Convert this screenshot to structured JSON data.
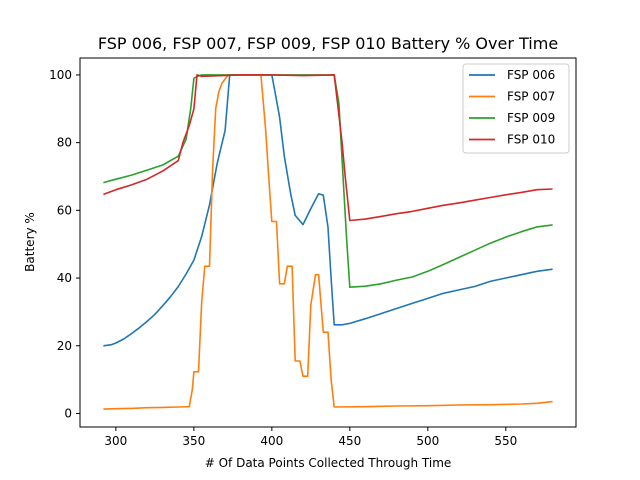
{
  "chart_data": {
    "type": "line",
    "title": "FSP 006, FSP 007, FSP 009, FSP 010 Battery % Over Time",
    "xlabel": "# Of Data Points Collected Through Time",
    "ylabel": "Battery %",
    "xlim": [
      277,
      595
    ],
    "ylim": [
      -4,
      105
    ],
    "xticks": [
      300,
      350,
      400,
      450,
      500,
      550
    ],
    "yticks": [
      0,
      20,
      40,
      60,
      80,
      100
    ],
    "grid": false,
    "legend_position": "top-right",
    "series": [
      {
        "name": "FSP 006",
        "color": "#1f77b4",
        "x": [
          292,
          297,
          300,
          305,
          310,
          315,
          320,
          325,
          330,
          335,
          340,
          345,
          350,
          355,
          360,
          365,
          370,
          373,
          400,
          402,
          405,
          408,
          412,
          415,
          420,
          425,
          430,
          433,
          436,
          438,
          440,
          445,
          450,
          460,
          470,
          480,
          490,
          500,
          510,
          520,
          530,
          540,
          550,
          560,
          570,
          580
        ],
        "y": [
          20,
          20.3,
          20.8,
          22,
          23.6,
          25.3,
          27.2,
          29.3,
          31.8,
          34.5,
          37.5,
          41.2,
          45.3,
          52.3,
          61.6,
          74,
          83.6,
          100,
          100,
          95,
          87.5,
          76,
          65,
          58.5,
          55.8,
          60.5,
          64.9,
          64.5,
          55,
          40,
          26.2,
          26.2,
          26.6,
          28,
          29.5,
          31,
          32.5,
          34,
          35.5,
          36.5,
          37.5,
          39,
          40,
          41,
          42,
          42.6
        ]
      },
      {
        "name": "FSP 007",
        "color": "#ff7f0e",
        "x": [
          292,
          300,
          310,
          320,
          330,
          340,
          347,
          349,
          350,
          353,
          355,
          357,
          360,
          362,
          364,
          366,
          368,
          372,
          393,
          396,
          398,
          400,
          403,
          405,
          408,
          410,
          413,
          415,
          418,
          420,
          423,
          425,
          428,
          430,
          433,
          436,
          438,
          440,
          460,
          480,
          500,
          520,
          540,
          560,
          570,
          580
        ],
        "y": [
          1.3,
          1.4,
          1.5,
          1.7,
          1.8,
          1.9,
          2,
          7,
          12.3,
          12.3,
          33,
          43.5,
          43.5,
          72,
          90,
          95,
          97.5,
          100,
          100,
          84,
          70,
          56.7,
          56.7,
          38.3,
          38.3,
          43.5,
          43.5,
          15.5,
          15.5,
          11,
          11,
          32,
          41,
          41,
          24,
          24,
          10,
          1.9,
          2,
          2.2,
          2.3,
          2.5,
          2.6,
          2.8,
          3,
          3.5
        ]
      },
      {
        "name": "FSP 009",
        "color": "#2ca02c",
        "x": [
          292,
          300,
          310,
          320,
          330,
          340,
          345,
          348,
          350,
          352,
          355,
          360,
          380,
          400,
          420,
          440,
          443,
          446,
          448,
          450,
          460,
          470,
          480,
          490,
          500,
          510,
          520,
          530,
          540,
          550,
          560,
          570,
          580
        ],
        "y": [
          68.2,
          69.2,
          70.4,
          71.9,
          73.4,
          76,
          81,
          90,
          99,
          99.5,
          100,
          100,
          100,
          100,
          100,
          100,
          91.6,
          67,
          51.2,
          37.3,
          37.6,
          38.3,
          39.4,
          40.3,
          42,
          44,
          46.1,
          48.2,
          50.3,
          52.1,
          53.7,
          55.1,
          55.7
        ]
      },
      {
        "name": "FSP 010",
        "color": "#d62728",
        "x": [
          292,
          300,
          310,
          320,
          330,
          340,
          343,
          347,
          350,
          352,
          355,
          380,
          400,
          420,
          440,
          442,
          445,
          447,
          450,
          460,
          470,
          480,
          490,
          500,
          510,
          520,
          530,
          540,
          550,
          560,
          570,
          580
        ],
        "y": [
          64.7,
          66.1,
          67.5,
          69.2,
          71.6,
          74.7,
          80,
          85,
          90,
          100,
          99.6,
          100,
          100,
          99.8,
          100,
          92,
          80.2,
          70,
          57,
          57.4,
          58.2,
          59,
          59.7,
          60.6,
          61.5,
          62.2,
          63,
          63.8,
          64.6,
          65.3,
          66.1,
          66.3
        ]
      }
    ]
  }
}
